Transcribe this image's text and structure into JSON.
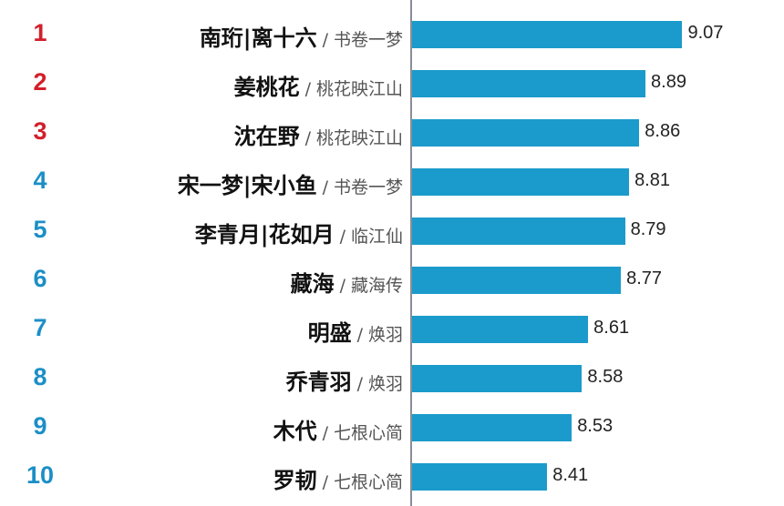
{
  "chart_data": {
    "type": "bar",
    "orientation": "horizontal",
    "title": "",
    "xlabel": "",
    "ylabel": "",
    "xlim": [
      7.75,
      9.3
    ],
    "separator": "/",
    "categories": [
      {
        "rank": "1",
        "name": "南珩|离十六",
        "drama": "书卷一梦"
      },
      {
        "rank": "2",
        "name": "姜桃花",
        "drama": "桃花映江山"
      },
      {
        "rank": "3",
        "name": "沈在野",
        "drama": "桃花映江山"
      },
      {
        "rank": "4",
        "name": "宋一梦|宋小鱼",
        "drama": "书卷一梦"
      },
      {
        "rank": "5",
        "name": "李青月|花如月",
        "drama": "临江仙"
      },
      {
        "rank": "6",
        "name": "藏海",
        "drama": "藏海传"
      },
      {
        "rank": "7",
        "name": "明盛",
        "drama": "焕羽"
      },
      {
        "rank": "8",
        "name": "乔青羽",
        "drama": "焕羽"
      },
      {
        "rank": "9",
        "name": "木代",
        "drama": "七根心简"
      },
      {
        "rank": "10",
        "name": "罗韧",
        "drama": "七根心简"
      }
    ],
    "values": [
      9.07,
      8.89,
      8.86,
      8.81,
      8.79,
      8.77,
      8.61,
      8.58,
      8.53,
      8.41
    ],
    "value_labels": [
      "9.07",
      "8.89",
      "8.86",
      "8.81",
      "8.79",
      "8.77",
      "8.61",
      "8.58",
      "8.53",
      "8.41"
    ],
    "colors": {
      "bar": "#1b9bcb",
      "rank_top": "#d21f2b",
      "rank_other": "#1b8fc6"
    }
  }
}
